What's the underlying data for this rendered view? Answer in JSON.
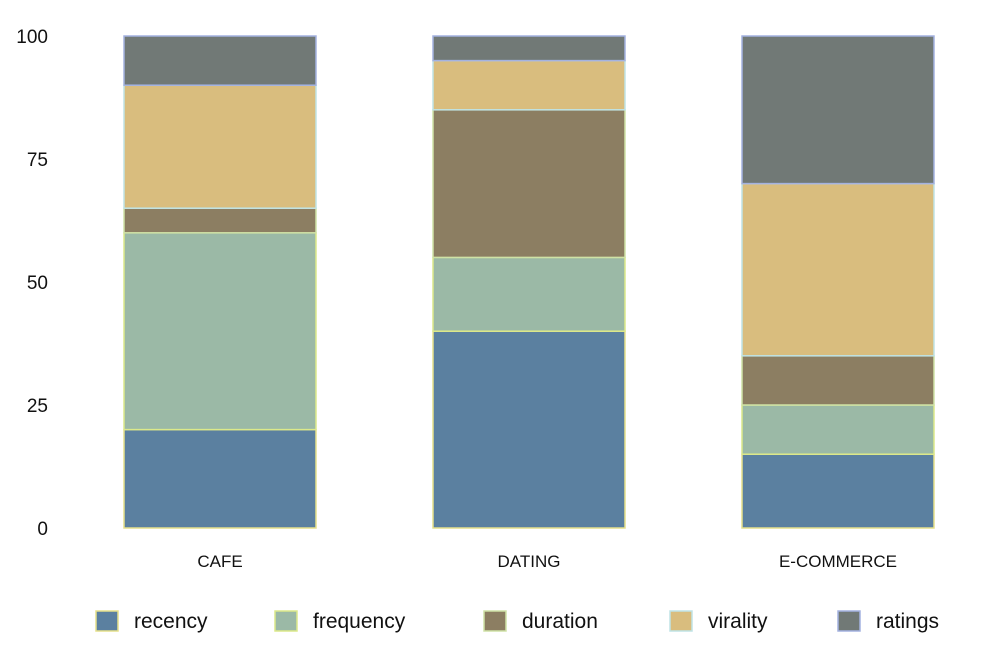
{
  "chart_data": {
    "type": "bar",
    "stacked": true,
    "title": "",
    "xlabel": "",
    "ylabel": "",
    "categories": [
      "CAFE",
      "DATING",
      "E-COMMERCE"
    ],
    "ylim": [
      0,
      100
    ],
    "yticks": [
      0,
      25,
      50,
      75,
      100
    ],
    "grid": false,
    "legend_position": "bottom",
    "series": [
      {
        "name": "recency",
        "values": [
          20,
          40,
          15
        ],
        "color": "#5b80a0",
        "edge": "#e6e08a"
      },
      {
        "name": "frequency",
        "values": [
          40,
          15,
          10
        ],
        "color": "#9bb9a6",
        "edge": "#dce98a"
      },
      {
        "name": "duration",
        "values": [
          5,
          30,
          10
        ],
        "color": "#8c7e62",
        "edge": "#cfe2a6"
      },
      {
        "name": "virality",
        "values": [
          25,
          10,
          35
        ],
        "color": "#d9bd7e",
        "edge": "#bfe3e6"
      },
      {
        "name": "ratings",
        "values": [
          10,
          5,
          30
        ],
        "color": "#717976",
        "edge": "#a4b2e0"
      }
    ]
  }
}
